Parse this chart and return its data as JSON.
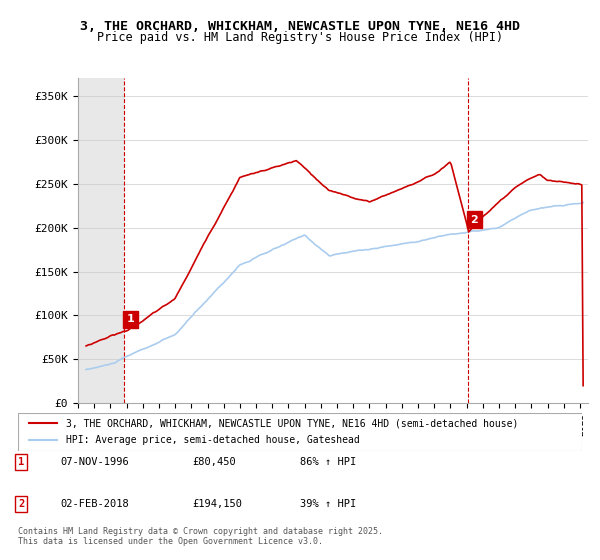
{
  "title": "3, THE ORCHARD, WHICKHAM, NEWCASTLE UPON TYNE, NE16 4HD",
  "subtitle": "Price paid vs. HM Land Registry's House Price Index (HPI)",
  "ylabel_ticks": [
    "£0",
    "£50K",
    "£100K",
    "£150K",
    "£200K",
    "£250K",
    "£300K",
    "£350K"
  ],
  "ytick_values": [
    0,
    50000,
    100000,
    150000,
    200000,
    250000,
    300000,
    350000
  ],
  "ylim": [
    0,
    370000
  ],
  "xlim_start": 1994.0,
  "xlim_end": 2025.5,
  "line1_color": "#cc0000",
  "line2_color": "#aaccee",
  "vline_color": "#cc0000",
  "annotation_box_color": "#cc0000",
  "legend_label1": "3, THE ORCHARD, WHICKHAM, NEWCASTLE UPON TYNE, NE16 4HD (semi-detached house)",
  "legend_label2": "HPI: Average price, semi-detached house, Gateshead",
  "sale1_date": "07-NOV-1996",
  "sale1_price": "£80,450",
  "sale1_hpi": "86% ↑ HPI",
  "sale2_date": "02-FEB-2018",
  "sale2_price": "£194,150",
  "sale2_hpi": "39% ↑ HPI",
  "footer": "Contains HM Land Registry data © Crown copyright and database right 2025.\nThis data is licensed under the Open Government Licence v3.0.",
  "bg_hatch_color": "#e8e8e8",
  "point1_year": 1996.85,
  "point1_price": 80450,
  "point2_year": 2018.08,
  "point2_price": 194150
}
